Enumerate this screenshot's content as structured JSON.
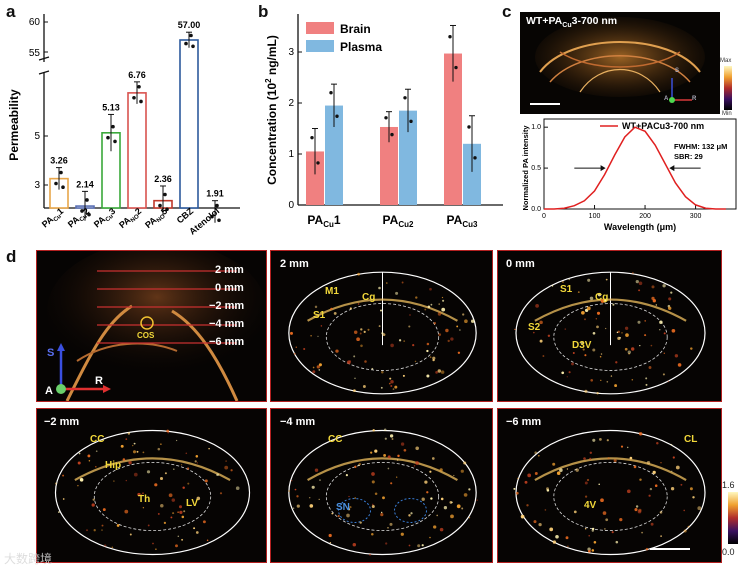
{
  "labels": {
    "a": "a",
    "b": "b",
    "c": "c",
    "d": "d"
  },
  "panel_a": {
    "ylabel": "Permeability",
    "ticks": [
      "3",
      "5",
      "55",
      "60"
    ],
    "categories": [
      "PA_Cu1",
      "PA_Cu2",
      "PA_Cu3",
      "PA_NO2",
      "PA_NO5",
      "CBZ",
      "Atenolol"
    ],
    "cat_main": [
      "PA",
      "PA",
      "PA",
      "PA",
      "PA",
      "CBZ",
      "Atenolol"
    ],
    "cat_sub": [
      "Cu",
      "Cu",
      "Cu",
      "NO",
      "NO",
      "",
      ""
    ],
    "cat_num": [
      "1",
      "2",
      "3",
      "2",
      "5",
      "",
      ""
    ],
    "values": [
      3.26,
      2.14,
      5.13,
      6.76,
      2.36,
      57.0,
      1.91
    ],
    "value_labels": [
      "3.26",
      "2.14",
      "5.13",
      "6.76",
      "2.36",
      "57.00",
      "1.91"
    ],
    "colors": [
      "#e8a64a",
      "#5a6fb3",
      "#3aa83a",
      "#d9534f",
      "#c0392b",
      "#2d5a9c",
      "#3fb1d8"
    ]
  },
  "chart_data": [
    {
      "type": "bar",
      "title": "",
      "ylabel": "Permeability",
      "categories": [
        "PA_Cu1",
        "PA_Cu2",
        "PA_Cu3",
        "PA_NO2",
        "PA_NO5",
        "CBZ",
        "Atenolol"
      ],
      "values": [
        3.26,
        2.14,
        5.13,
        6.76,
        2.36,
        57.0,
        1.91
      ],
      "axis_break": [
        8,
        53
      ],
      "ylim": [
        0,
        62
      ]
    },
    {
      "type": "bar",
      "ylabel": "Concentration (10^2 ng/mL)",
      "categories": [
        "PA_Cu1",
        "PA_Cu2",
        "PA_Cu3"
      ],
      "series": [
        {
          "name": "Brain",
          "color": "#f08080",
          "values": [
            1.05,
            1.53,
            2.97
          ],
          "errors": [
            0.45,
            0.3,
            0.55
          ]
        },
        {
          "name": "Plasma",
          "color": "#80b8e0",
          "values": [
            1.95,
            1.85,
            1.2
          ],
          "errors": [
            0.42,
            0.42,
            0.55
          ]
        }
      ],
      "ylim": [
        0,
        3.5
      ],
      "yticks": [
        "0",
        "1",
        "2",
        "3"
      ]
    },
    {
      "type": "line",
      "xlabel": "Wavelength (μm)",
      "ylabel": "Normalized PA intensity",
      "legend": "WT+PACu3-700 nm",
      "x": [
        0,
        20,
        40,
        60,
        80,
        100,
        120,
        140,
        160,
        180,
        200,
        220,
        240,
        260,
        280,
        300,
        320,
        340,
        360
      ],
      "y": [
        0.0,
        0.0,
        0.01,
        0.04,
        0.1,
        0.22,
        0.42,
        0.66,
        0.88,
        1.0,
        0.95,
        0.78,
        0.55,
        0.32,
        0.15,
        0.05,
        0.01,
        0.0,
        0.0
      ],
      "xlim": [
        0,
        380
      ],
      "ylim": [
        0,
        1.1
      ],
      "xticks": [
        "0",
        "100",
        "200",
        "300"
      ],
      "yticks": [
        "0.0",
        "0.5",
        "1.0"
      ]
    }
  ],
  "panel_b": {
    "ylabel_main": "Concentration (10",
    "ylabel_sup": "2",
    "ylabel_end": " ng/mL)",
    "legend_brain": "Brain",
    "legend_plasma": "Plasma",
    "ticks": [
      "0",
      "1",
      "2",
      "3"
    ],
    "cat_main": [
      "PA",
      "PA",
      "PA"
    ],
    "cat_sub": [
      "Cu",
      "Cu2",
      "Cu3"
    ],
    "cat_num": [
      "1",
      "",
      ""
    ]
  },
  "panel_c": {
    "title_main": "WT+PA",
    "title_sub": "Cu",
    "title_end": "3-700 nm",
    "colorbar_max": "Max",
    "colorbar_min": "Min",
    "axis_s": "S",
    "axis_a": "A",
    "axis_r": "R",
    "legend": "WT+PACu3-700 nm",
    "fwhm": "FWHM: 132 μM",
    "sbr": "SBR: 29",
    "ylabel": "Normalized PA intensity",
    "xlabel": "Wavelength (μm)",
    "xticks": [
      "0",
      "100",
      "200",
      "300"
    ],
    "yticks": [
      "0.0",
      "0.5",
      "1.0"
    ]
  },
  "panel_d": {
    "overview": {
      "slices": [
        "2 mm",
        "0 mm",
        "−2 mm",
        "−4 mm",
        "−6 mm"
      ],
      "cos": "COS",
      "axis_s": "S",
      "axis_a": "A",
      "axis_r": "R"
    },
    "p2": {
      "title": "2 mm",
      "areas": [
        "M1",
        "Cg",
        "S1"
      ]
    },
    "p3": {
      "title": "0 mm",
      "areas": [
        "S1",
        "Cg",
        "S2",
        "D3V"
      ]
    },
    "p4": {
      "title": "−2 mm",
      "areas": [
        "CC",
        "Hip",
        "Th",
        "LV"
      ]
    },
    "p5": {
      "title": "−4 mm",
      "areas": [
        "CC",
        "SN"
      ]
    },
    "p6": {
      "title": "−6 mm",
      "areas": [
        "CL",
        "4V"
      ]
    },
    "colorbar_max": "1.6",
    "colorbar_min": "0.0",
    "watermark": "大数跨境"
  }
}
